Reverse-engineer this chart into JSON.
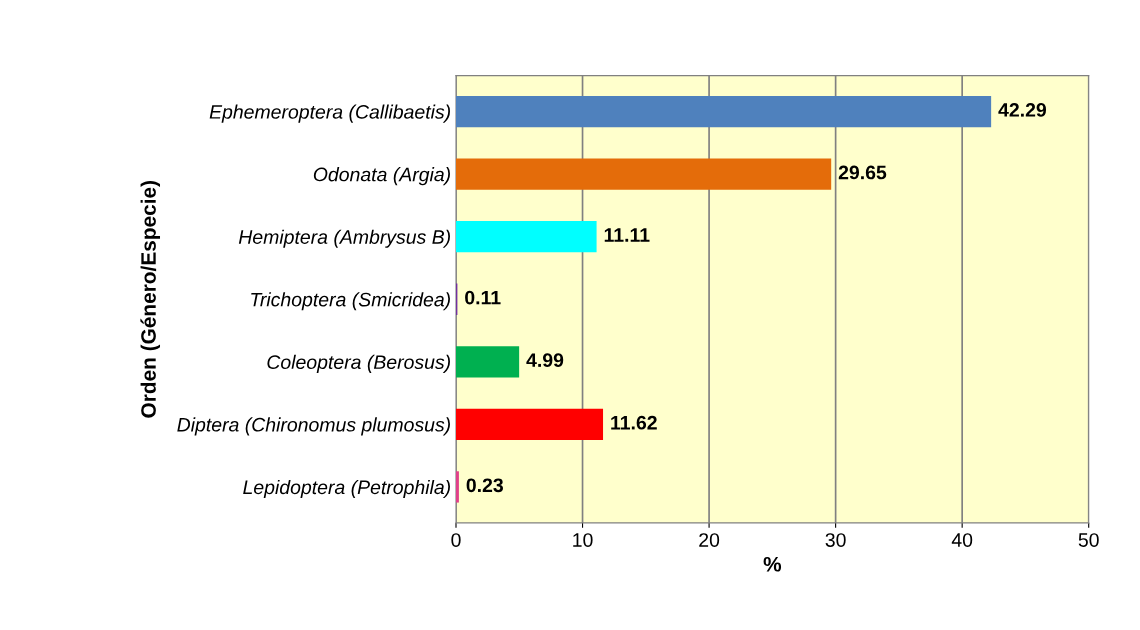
{
  "chart_data": {
    "type": "bar",
    "orientation": "horizontal",
    "xlabel": "%",
    "ylabel": "Orden (Género/Especie)",
    "categories": [
      "Ephemeroptera (Callibaetis)",
      "Odonata (Argia)",
      "Hemiptera (Ambrysus B)",
      "Trichoptera (Smicridea)",
      "Coleoptera (Berosus)",
      "Diptera (Chironomus plumosus)",
      "Lepidoptera (Petrophila)"
    ],
    "values": [
      42.29,
      29.65,
      11.11,
      0.11,
      4.99,
      11.62,
      0.23
    ],
    "colors": [
      "#4f81bd",
      "#e46c0a",
      "#00ffff",
      "#7030a0",
      "#00b050",
      "#ff0000",
      "#e0408a"
    ],
    "xlim": [
      0,
      50
    ],
    "xticks": [
      0,
      10,
      20,
      30,
      40,
      50
    ],
    "grid": "x",
    "data_labels": true
  }
}
